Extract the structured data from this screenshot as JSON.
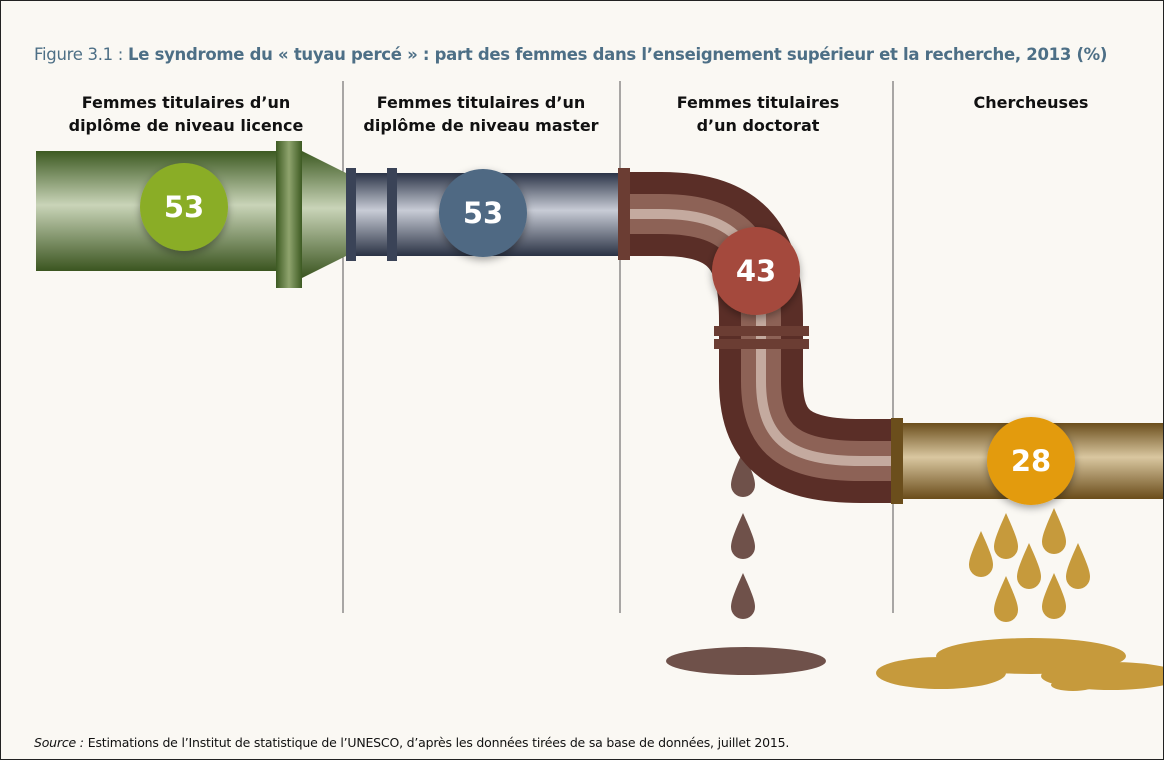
{
  "chart_data": {
    "type": "pipeline",
    "figure_label": "Figure 3.1 :",
    "title": "Le syndrome du « tuyau percé » : part des femmes dans l’enseignement supérieur et la recherche, 2013 (%)",
    "categories": [
      "Femmes titulaires d’un diplôme de niveau licence",
      "Femmes titulaires d’un diplôme de niveau master",
      "Femmes titulaires d’un doctorat",
      "Chercheuses"
    ],
    "values": [
      53,
      53,
      43,
      28
    ],
    "colors": [
      "#8aad26",
      "#4f6983",
      "#a44a3c",
      "#e39b10"
    ],
    "source_label": "Source :",
    "source": "Estimations de l’Institut de statistique de l’UNESCO, d’après les données tirées de sa base de données, juillet 2015."
  }
}
